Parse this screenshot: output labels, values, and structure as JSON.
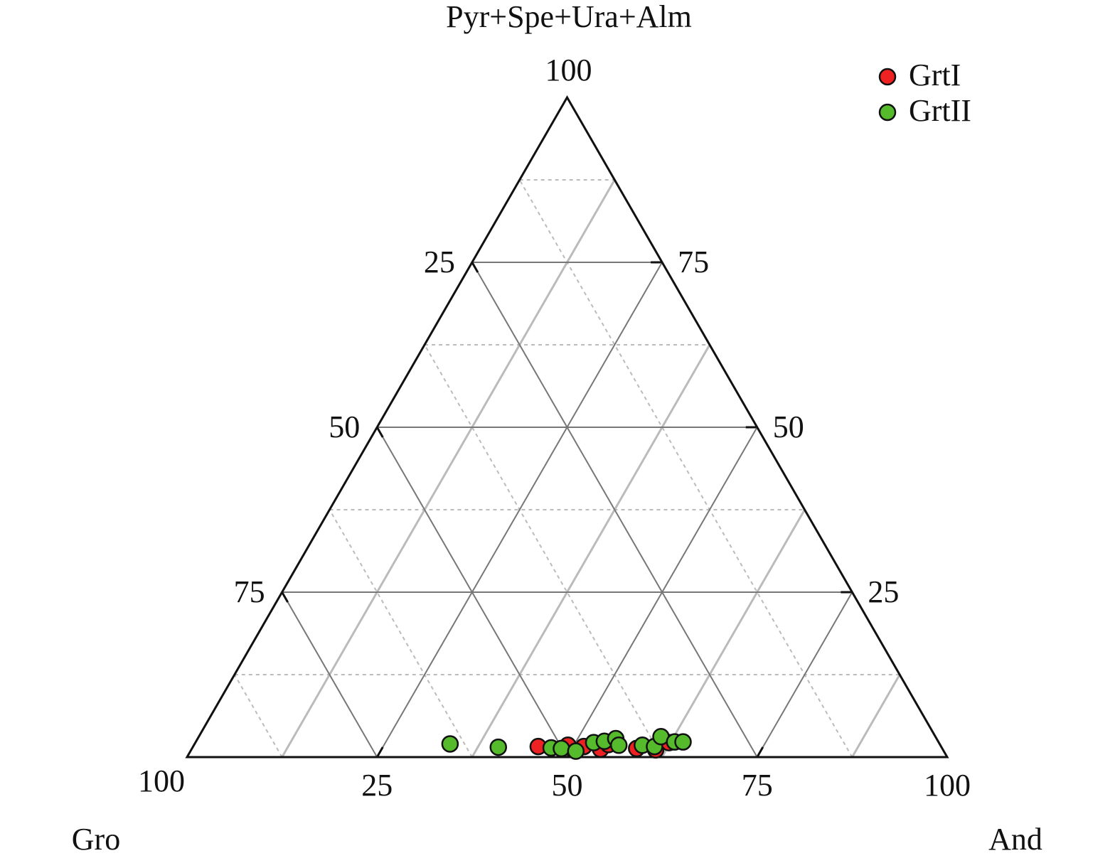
{
  "chart_data": {
    "type": "ternary",
    "axis_top": "Pyr+Spe+Ura+Alm",
    "axis_left": "Gro",
    "axis_right": "And",
    "top_ticks": [
      25,
      50,
      75,
      100
    ],
    "left_ticks": [
      25,
      50,
      75,
      100
    ],
    "right_ticks": [
      25,
      50,
      75,
      100
    ],
    "minor_grid": [
      12.5,
      37.5,
      62.5,
      87.5
    ],
    "grid": true,
    "legend": "top-right",
    "series": [
      {
        "name": "GrtI",
        "color": "#ee2222",
        "values": [
          [
            1.6,
            45.4
          ],
          [
            1.8,
            49.2
          ],
          [
            1.6,
            51.4
          ],
          [
            1.2,
            53.8
          ],
          [
            1.9,
            54.5
          ],
          [
            1.3,
            58.5
          ],
          [
            1.1,
            61.1
          ],
          [
            2.2,
            62.3
          ]
        ]
      },
      {
        "name": "GrtII",
        "color": "#55bb2c",
        "values": [
          [
            2,
            33.6
          ],
          [
            1.5,
            40.2
          ],
          [
            1.4,
            47.2
          ],
          [
            1.3,
            48.6
          ],
          [
            0.9,
            50.7
          ],
          [
            2.2,
            52.4
          ],
          [
            2.4,
            53.7
          ],
          [
            2.8,
            55
          ],
          [
            1.8,
            55.9
          ],
          [
            1.8,
            59
          ],
          [
            1.6,
            60.7
          ],
          [
            3.1,
            60.8
          ],
          [
            2.3,
            63
          ],
          [
            2.3,
            64.1
          ]
        ]
      }
    ]
  }
}
